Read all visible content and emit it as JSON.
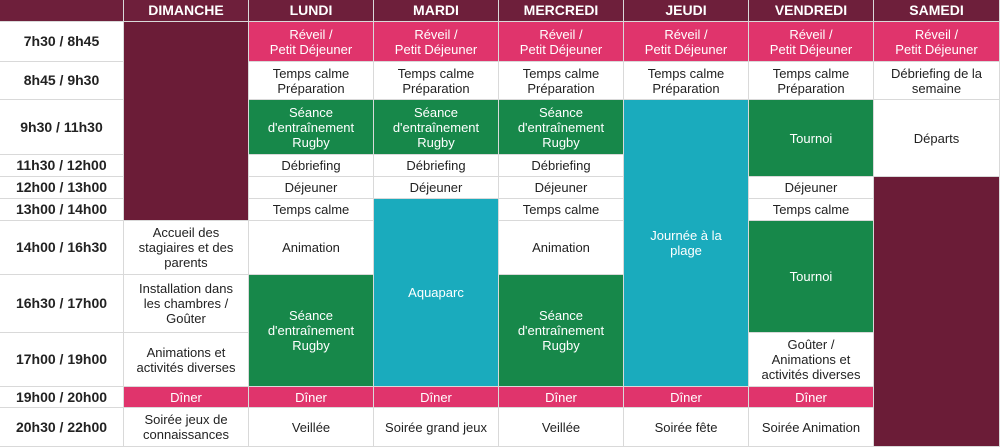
{
  "days": [
    {
      "name": "DIMANCHE",
      "cells": [
        "Accueil des\nstagiaires et des\nparents",
        "Installation dans\nles chambres /\nGoûter",
        "Animations et\nactivités diverses",
        "Dîner",
        "Soirée jeux de\nconnaissances"
      ]
    },
    {
      "name": "LUNDI",
      "cells": [
        "Réveil /\nPetit Déjeuner",
        "Temps calme\nPréparation",
        "Séance\nd'entraînement\nRugby",
        "Débriefing",
        "Déjeuner",
        "Temps calme",
        "Animation",
        "Séance\nd'entraînement\nRugby",
        "Dîner",
        "Veillée"
      ]
    },
    {
      "name": "MARDI",
      "cells": [
        "Réveil /\nPetit Déjeuner",
        "Temps calme\nPréparation",
        "Séance\nd'entraînement\nRugby",
        "Débriefing",
        "Déjeuner",
        "Aquaparc",
        "Dîner",
        "Soirée grand jeux"
      ]
    },
    {
      "name": "MERCREDI",
      "cells": [
        "Réveil /\nPetit Déjeuner",
        "Temps calme\nPréparation",
        "Séance\nd'entraînement\nRugby",
        "Débriefing",
        "Déjeuner",
        "Temps calme",
        "Animation",
        "Séance\nd'entraînement\nRugby",
        "Dîner",
        "Veillée"
      ]
    },
    {
      "name": "JEUDI",
      "cells": [
        "Réveil /\nPetit Déjeuner",
        "Temps calme\nPréparation",
        "Journée à la\nplage",
        "Dîner",
        "Soirée fête"
      ]
    },
    {
      "name": "VENDREDI",
      "cells": [
        "Réveil /\nPetit Déjeuner",
        "Temps calme\nPréparation",
        "Tournoi",
        "Déjeuner",
        "Temps calme",
        "Tournoi",
        "Goûter /\nAnimations et\nactivités diverses",
        "Dîner",
        "Soirée Animation"
      ]
    },
    {
      "name": "SAMEDI",
      "cells": [
        "Réveil /\nPetit Déjeuner",
        "Débriefing de la\nsemaine",
        "Départs"
      ]
    }
  ],
  "times": [
    "7h30 / 8h45",
    "8h45 / 9h30",
    "9h30 / 11h30",
    "11h30 / 12h00",
    "12h00 / 13h00",
    "13h00 / 14h00",
    "14h00 / 16h30",
    "16h30 / 17h00",
    "17h00 / 19h00",
    "19h00 / 20h00",
    "20h30 / 22h00"
  ]
}
